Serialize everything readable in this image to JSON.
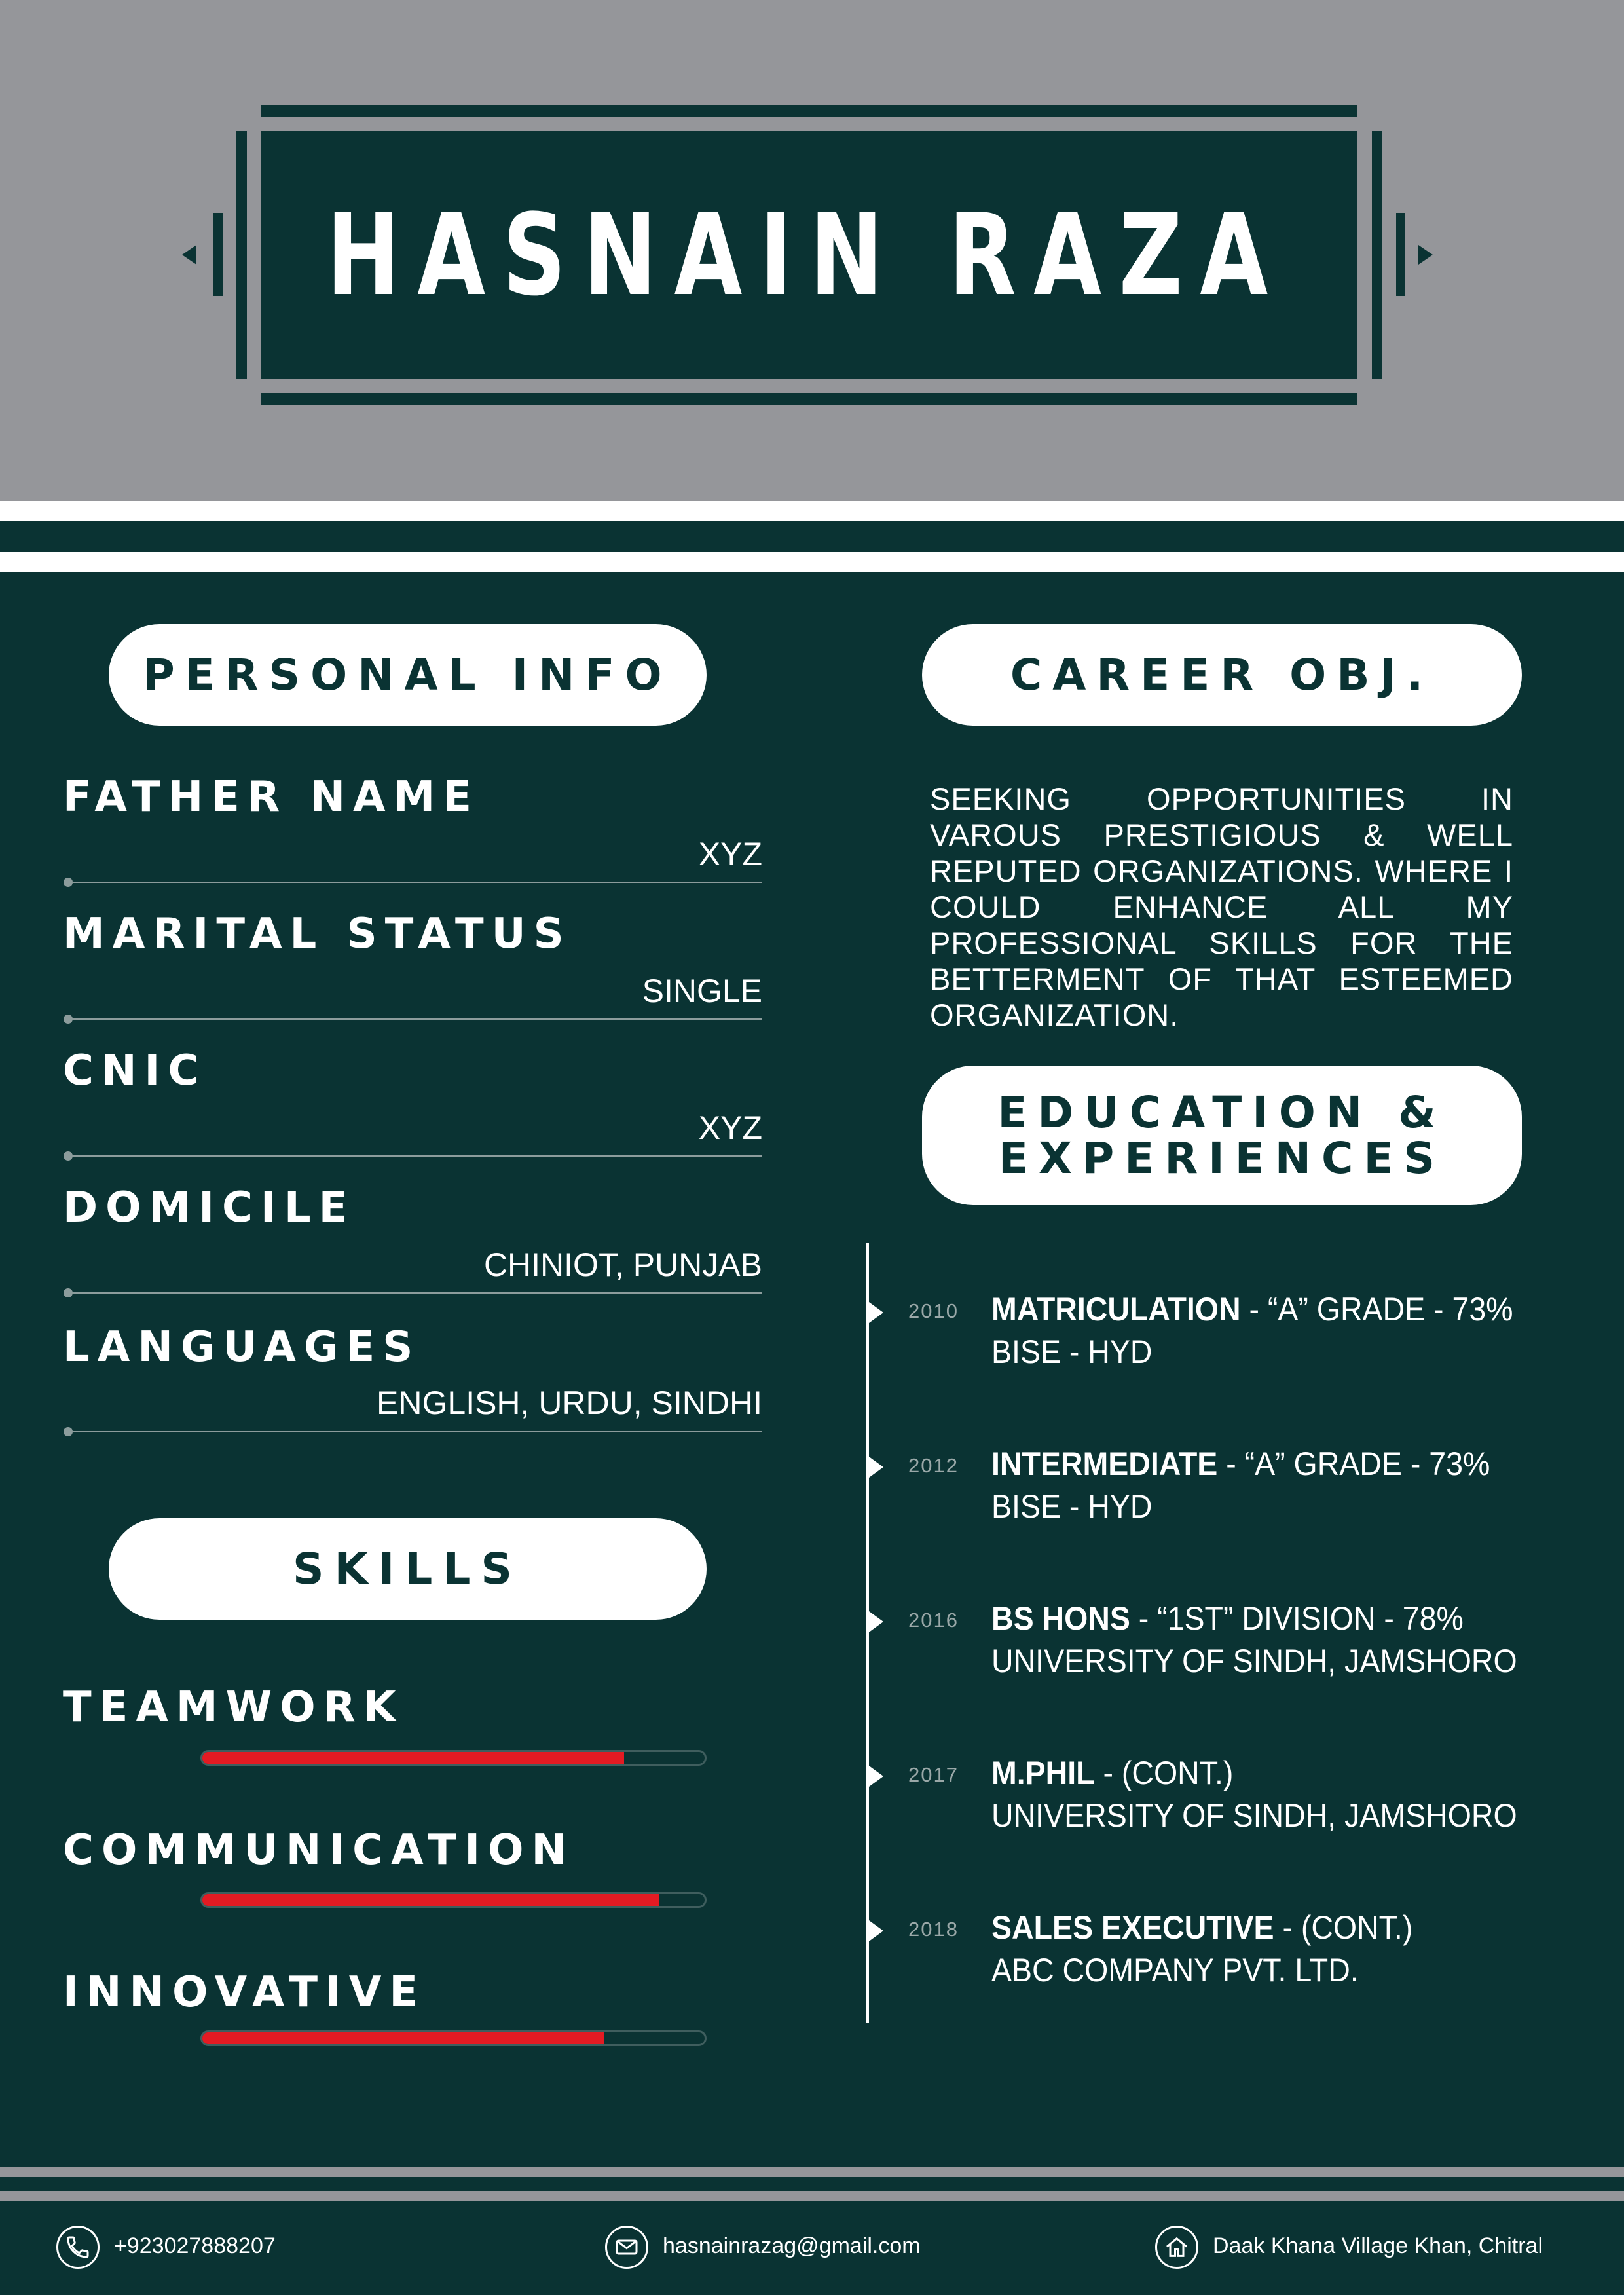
{
  "header": {
    "name": "HASNAIN RAZA"
  },
  "personal_info": {
    "heading": "PERSONAL INFO",
    "fields": [
      {
        "label": "FATHER NAME",
        "value": "XYZ"
      },
      {
        "label": "MARITAL STATUS",
        "value": "SINGLE"
      },
      {
        "label": "CNIC",
        "value": "XYZ"
      },
      {
        "label": "DOMICILE",
        "value": "CHINIOT, PUNJAB"
      },
      {
        "label": "LANGUAGES",
        "value": "ENGLISH, URDU, SINDHI"
      }
    ]
  },
  "skills": {
    "heading": "SKILLS",
    "items": [
      {
        "label": "TEAMWORK",
        "level": 0.84
      },
      {
        "label": "COMMUNICATION",
        "level": 0.91
      },
      {
        "label": "INNOVATIVE",
        "level": 0.8
      }
    ]
  },
  "career": {
    "heading": "CAREER OBJ.",
    "text": "SEEKING OPPORTUNITIES IN VAROUS PRESTIGIOUS & WELL REPUTED ORGANIZATIONS. WHERE I COULD ENHANCE ALL MY PROFESSIONAL SKILLS FOR THE BETTERMENT OF THAT ESTEEMED ORGANIZATION."
  },
  "education": {
    "heading_line1": "EDUCATION &",
    "heading_line2": "EXPERIENCES",
    "entries": [
      {
        "year": "2010",
        "title": "MATRICULATION",
        "detail": " - “A” GRADE - 73%",
        "sub": "BISE - HYD"
      },
      {
        "year": "2012",
        "title": "INTERMEDIATE",
        "detail": " - “A” GRADE - 73%",
        "sub": "BISE - HYD"
      },
      {
        "year": "2016",
        "title": "BS HONS",
        "detail": " - “1ST” DIVISION - 78%",
        "sub": "UNIVERSITY OF SINDH, JAMSHORO"
      },
      {
        "year": "2017",
        "title": "M.PHIL",
        "detail": " -  (CONT.)",
        "sub": "UNIVERSITY OF SINDH, JAMSHORO"
      },
      {
        "year": "2018",
        "title": "SALES EXECUTIVE",
        "detail": " -  (CONT.)",
        "sub": "ABC COMPANY PVT. LTD."
      }
    ]
  },
  "footer": {
    "phone": "+923027888207",
    "email": "hasnainrazag@gmail.com",
    "address": "Daak Khana Village Khan, Chitral",
    "icons": [
      "phone-icon",
      "mail-icon",
      "home-icon"
    ]
  },
  "colors": {
    "primary": "#0a3333",
    "header_gray": "#95969a",
    "skill_fill": "#e31b23",
    "white": "#ffffff"
  }
}
